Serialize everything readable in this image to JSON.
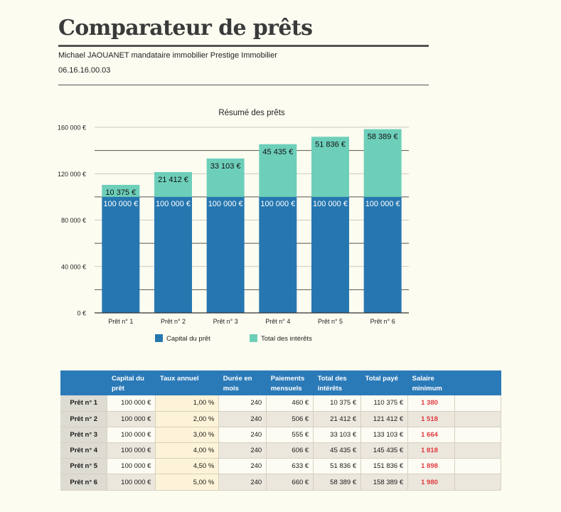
{
  "header": {
    "title": "Comparateur de prêts",
    "subtitle": "Michael JAOUANET mandataire immobilier Prestige Immobilier",
    "phone": "06.16.16.00.03"
  },
  "colors": {
    "capital": "#2677b0",
    "interest": "#6dcfba",
    "salary": "#e0393e",
    "header_bg": "#2b7ab8"
  },
  "chart_data": {
    "type": "bar",
    "stacked": true,
    "title": "Résumé des prêts",
    "categories": [
      "Prêt n° 1",
      "Prêt n° 2",
      "Prêt n° 3",
      "Prêt n° 4",
      "Prêt n° 5",
      "Prêt n° 6"
    ],
    "series": [
      {
        "name": "Capital du prêt",
        "values": [
          100000,
          100000,
          100000,
          100000,
          100000,
          100000
        ],
        "labels": [
          "100 000 €",
          "100 000 €",
          "100 000 €",
          "100 000 €",
          "100 000 €",
          "100 000 €"
        ]
      },
      {
        "name": "Total des intérêts",
        "values": [
          10375,
          21412,
          33103,
          45435,
          51836,
          58389
        ],
        "labels": [
          "10 375 €",
          "21 412 €",
          "33 103 €",
          "45 435 €",
          "51 836 €",
          "58 389 €"
        ]
      }
    ],
    "ylim": [
      0,
      160000
    ],
    "yticks": [
      0,
      40000,
      80000,
      120000,
      160000
    ],
    "ytick_labels": [
      "0 €",
      "40 000 €",
      "80 000 €",
      "120 000 €",
      "160 000 €"
    ],
    "grid": true,
    "legend_position": "bottom"
  },
  "table": {
    "headers": [
      "",
      "Capital du prêt",
      "Taux annuel",
      "Durée en mois",
      "Paiements mensuels",
      "Total des intérêts",
      "Total payé",
      "Salaire minimum",
      ""
    ],
    "rows": [
      [
        "Prêt n° 1",
        "100 000 €",
        "1,00 %",
        "240",
        "460 €",
        "10 375 €",
        "110 375 €",
        "1 380"
      ],
      [
        "Prêt n° 2",
        "100 000 €",
        "2,00 %",
        "240",
        "506 €",
        "21 412 €",
        "121 412 €",
        "1 518"
      ],
      [
        "Prêt n° 3",
        "100 000 €",
        "3,00 %",
        "240",
        "555 €",
        "33 103 €",
        "133 103 €",
        "1 664"
      ],
      [
        "Prêt n° 4",
        "100 000 €",
        "4,00 %",
        "240",
        "606 €",
        "45 435 €",
        "145 435 €",
        "1 818"
      ],
      [
        "Prêt n° 5",
        "100 000 €",
        "4,50 %",
        "240",
        "633 €",
        "51 836 €",
        "151 836 €",
        "1 898"
      ],
      [
        "Prêt n° 6",
        "100 000 €",
        "5,00 %",
        "240",
        "660 €",
        "58 389 €",
        "158 389 €",
        "1 980"
      ]
    ]
  }
}
